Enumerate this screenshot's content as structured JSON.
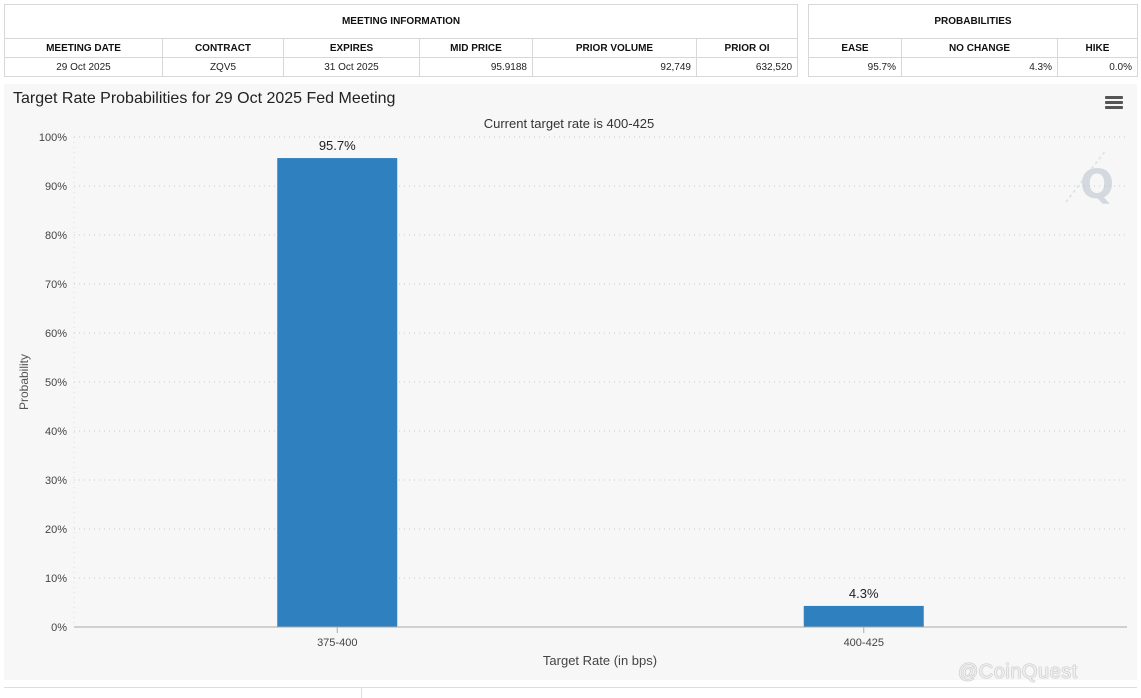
{
  "meeting_info": {
    "title": "MEETING INFORMATION",
    "headers": [
      "MEETING DATE",
      "CONTRACT",
      "EXPIRES",
      "MID PRICE",
      "PRIOR VOLUME",
      "PRIOR OI"
    ],
    "row": [
      "29 Oct 2025",
      "ZQV5",
      "31 Oct 2025",
      "95.9188",
      "92,749",
      "632,520"
    ]
  },
  "probabilities": {
    "title": "PROBABILITIES",
    "headers": [
      "EASE",
      "NO CHANGE",
      "HIKE"
    ],
    "row": [
      "95.7%",
      "4.3%",
      "0.0%"
    ]
  },
  "chart_data": {
    "type": "bar",
    "title": "Target Rate Probabilities for 29 Oct 2025 Fed Meeting",
    "subtitle": "Current target rate is 400-425",
    "xlabel": "Target Rate (in bps)",
    "ylabel": "Probability",
    "categories": [
      "375-400",
      "400-425"
    ],
    "values": [
      95.7,
      4.3
    ],
    "data_labels": [
      "95.7%",
      "4.3%"
    ],
    "ylim": [
      0,
      100
    ],
    "yticks": [
      0,
      10,
      20,
      30,
      40,
      50,
      60,
      70,
      80,
      90,
      100
    ],
    "ytick_suffix": "%",
    "grid": true,
    "bar_color": "#2f80bf"
  },
  "watermark": "@CoinQuest",
  "icons": {
    "menu": "hamburger-menu-icon",
    "logo": "q-logo-icon"
  }
}
